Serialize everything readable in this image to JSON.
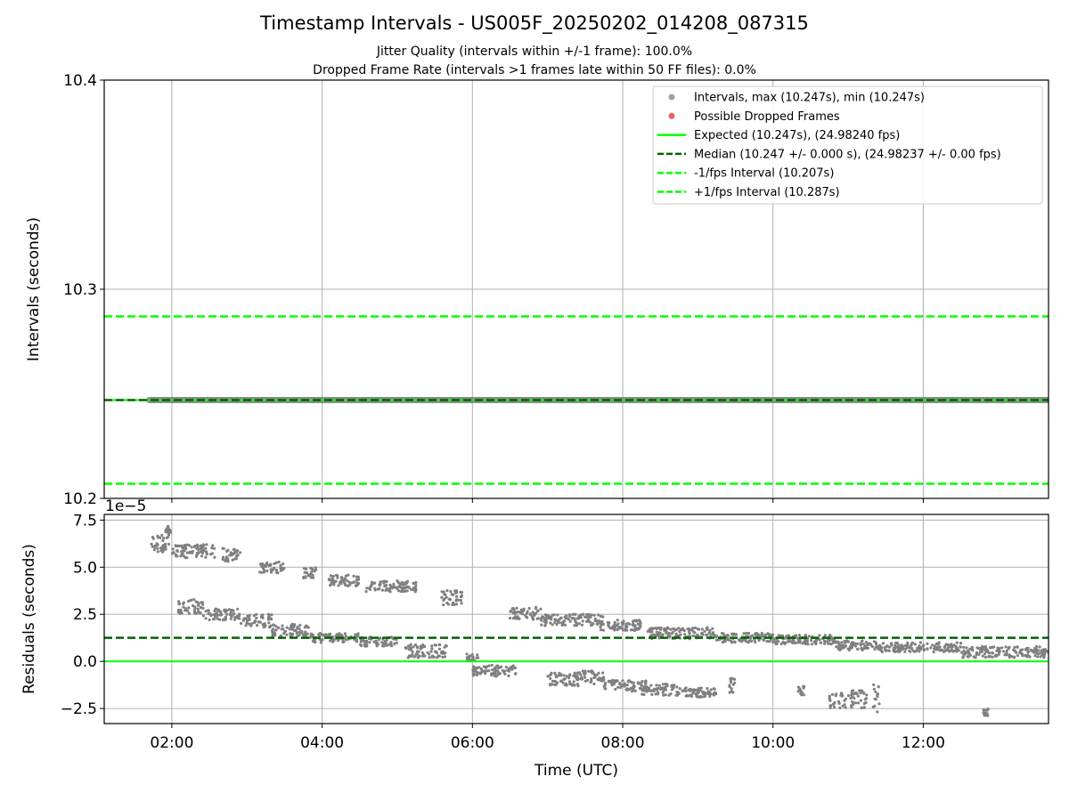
{
  "header": {
    "title": "Timestamp Intervals - US005F_20250202_014208_087315",
    "subtitle1": "Jitter Quality (intervals within +/-1 frame): 100.0%",
    "subtitle2": "Dropped Frame Rate (intervals >1 frames late within 50 FF files): 0.0%"
  },
  "colors": {
    "points": "#808080",
    "dropped": "#f06060",
    "expected": "#00ff00",
    "median": "#006400",
    "interval_bounds": "#00ff00",
    "grid": "#b0b0b0"
  },
  "chart_data": [
    {
      "type": "scatter",
      "ylabel": "Intervals (seconds)",
      "xlabel": "",
      "xlim": [
        "01:06",
        "13:40"
      ],
      "ylim": [
        10.2,
        10.4
      ],
      "yticks": [
        10.2,
        10.3,
        10.4
      ],
      "ytick_labels": [
        "10.2",
        "10.3",
        "10.4"
      ],
      "grid": true,
      "legend_location": "top-right",
      "legend": [
        {
          "kind": "marker",
          "color": "#a0a0a0",
          "label": "Intervals, max (10.247s), min (10.247s)"
        },
        {
          "kind": "marker",
          "color": "#f06060",
          "label": "Possible Dropped Frames"
        },
        {
          "kind": "solid",
          "color": "#00ff00",
          "label": "Expected (10.247s), (24.98240 fps)"
        },
        {
          "kind": "dashed",
          "color": "#006400",
          "label": "Median (10.247 +/- 0.000 s), (24.98237 +/- 0.00 fps)"
        },
        {
          "kind": "dashed",
          "color": "#00ff00",
          "label": "-1/fps Interval (10.207s)"
        },
        {
          "kind": "dashed",
          "color": "#00ff00",
          "label": "+1/fps Interval (10.287s)"
        }
      ],
      "series": [
        {
          "kind": "scatter-band",
          "color": "#808080",
          "x_start": "01:42",
          "x_end": "13:40",
          "y": 10.247
        },
        {
          "kind": "hline-solid",
          "color": "#00ff00",
          "y": 10.247
        },
        {
          "kind": "hline-dashed",
          "color": "#006400",
          "y": 10.247
        },
        {
          "kind": "hline-dashed",
          "color": "#00ff00",
          "y": 10.207
        },
        {
          "kind": "hline-dashed",
          "color": "#00ff00",
          "y": 10.287
        }
      ]
    },
    {
      "type": "scatter",
      "ylabel": "Residuals (seconds)",
      "xlabel": "Time (UTC)",
      "y_scale_label": "1e−5",
      "xlim": [
        "01:06",
        "13:40"
      ],
      "ylim": [
        -3.3,
        7.8
      ],
      "yticks": [
        -2.5,
        0.0,
        2.5,
        5.0,
        7.5
      ],
      "ytick_labels": [
        "−2.5",
        "0.0",
        "2.5",
        "5.0",
        "7.5"
      ],
      "xticks": [
        "02:00",
        "04:00",
        "06:00",
        "08:00",
        "10:00",
        "12:00"
      ],
      "grid": true,
      "reference_lines": [
        {
          "name": "expected",
          "color": "#00ff00",
          "style": "solid",
          "y": 0.0
        },
        {
          "name": "median",
          "color": "#006400",
          "style": "dashed",
          "y": 1.25
        }
      ],
      "clusters": [
        {
          "x": [
            "01:42",
            "01:58"
          ],
          "y": [
            5.8,
            6.7
          ]
        },
        {
          "x": [
            "01:55",
            "01:59"
          ],
          "y": [
            6.5,
            7.2
          ]
        },
        {
          "x": [
            "02:00",
            "02:35"
          ],
          "y": [
            5.5,
            6.2
          ]
        },
        {
          "x": [
            "02:40",
            "02:55"
          ],
          "y": [
            5.3,
            6.0
          ]
        },
        {
          "x": [
            "02:05",
            "02:25"
          ],
          "y": [
            2.5,
            3.3
          ]
        },
        {
          "x": [
            "02:25",
            "02:55"
          ],
          "y": [
            2.2,
            2.8
          ]
        },
        {
          "x": [
            "02:55",
            "03:20"
          ],
          "y": [
            1.8,
            2.5
          ]
        },
        {
          "x": [
            "03:20",
            "03:50"
          ],
          "y": [
            1.3,
            2.0
          ]
        },
        {
          "x": [
            "03:10",
            "03:30"
          ],
          "y": [
            4.7,
            5.3
          ]
        },
        {
          "x": [
            "03:45",
            "03:55"
          ],
          "y": [
            4.4,
            5.0
          ]
        },
        {
          "x": [
            "03:50",
            "04:30"
          ],
          "y": [
            1.0,
            1.5
          ]
        },
        {
          "x": [
            "04:05",
            "04:30"
          ],
          "y": [
            4.0,
            4.6
          ]
        },
        {
          "x": [
            "04:30",
            "05:00"
          ],
          "y": [
            0.8,
            1.3
          ]
        },
        {
          "x": [
            "04:35",
            "05:15"
          ],
          "y": [
            3.7,
            4.3
          ]
        },
        {
          "x": [
            "05:05",
            "05:40"
          ],
          "y": [
            0.2,
            0.9
          ]
        },
        {
          "x": [
            "05:35",
            "05:52"
          ],
          "y": [
            3.0,
            3.8
          ]
        },
        {
          "x": [
            "05:55",
            "06:05"
          ],
          "y": [
            0.0,
            0.4
          ]
        },
        {
          "x": [
            "06:00",
            "06:35"
          ],
          "y": [
            -0.8,
            -0.2
          ]
        },
        {
          "x": [
            "06:30",
            "06:55"
          ],
          "y": [
            2.2,
            2.9
          ]
        },
        {
          "x": [
            "06:55",
            "07:45"
          ],
          "y": [
            1.9,
            2.5
          ]
        },
        {
          "x": [
            "07:00",
            "07:25"
          ],
          "y": [
            -1.3,
            -0.6
          ]
        },
        {
          "x": [
            "07:25",
            "07:45"
          ],
          "y": [
            -1.2,
            -0.5
          ]
        },
        {
          "x": [
            "07:40",
            "08:15"
          ],
          "y": [
            1.6,
            2.2
          ]
        },
        {
          "x": [
            "07:45",
            "08:20"
          ],
          "y": [
            -1.6,
            -1.0
          ]
        },
        {
          "x": [
            "08:15",
            "08:45"
          ],
          "y": [
            -1.8,
            -1.2
          ]
        },
        {
          "x": [
            "08:45",
            "09:15"
          ],
          "y": [
            -1.9,
            -1.4
          ]
        },
        {
          "x": [
            "08:20",
            "09:15"
          ],
          "y": [
            1.2,
            1.8
          ]
        },
        {
          "x": [
            "09:15",
            "10:00"
          ],
          "y": [
            1.0,
            1.5
          ]
        },
        {
          "x": [
            "09:25",
            "09:30"
          ],
          "y": [
            -1.8,
            -0.9
          ]
        },
        {
          "x": [
            "10:00",
            "10:50"
          ],
          "y": [
            0.9,
            1.4
          ]
        },
        {
          "x": [
            "10:20",
            "10:25"
          ],
          "y": [
            -1.8,
            -1.3
          ]
        },
        {
          "x": [
            "10:50",
            "11:25"
          ],
          "y": [
            0.6,
            1.1
          ]
        },
        {
          "x": [
            "10:45",
            "11:15"
          ],
          "y": [
            -2.5,
            -1.5
          ]
        },
        {
          "x": [
            "11:20",
            "11:25"
          ],
          "y": [
            -2.7,
            -1.2
          ]
        },
        {
          "x": [
            "11:25",
            "12:30"
          ],
          "y": [
            0.5,
            1.0
          ]
        },
        {
          "x": [
            "12:30",
            "13:40"
          ],
          "y": [
            0.2,
            0.8
          ]
        },
        {
          "x": [
            "12:48",
            "12:52"
          ],
          "y": [
            -2.9,
            -2.5
          ]
        }
      ]
    }
  ]
}
